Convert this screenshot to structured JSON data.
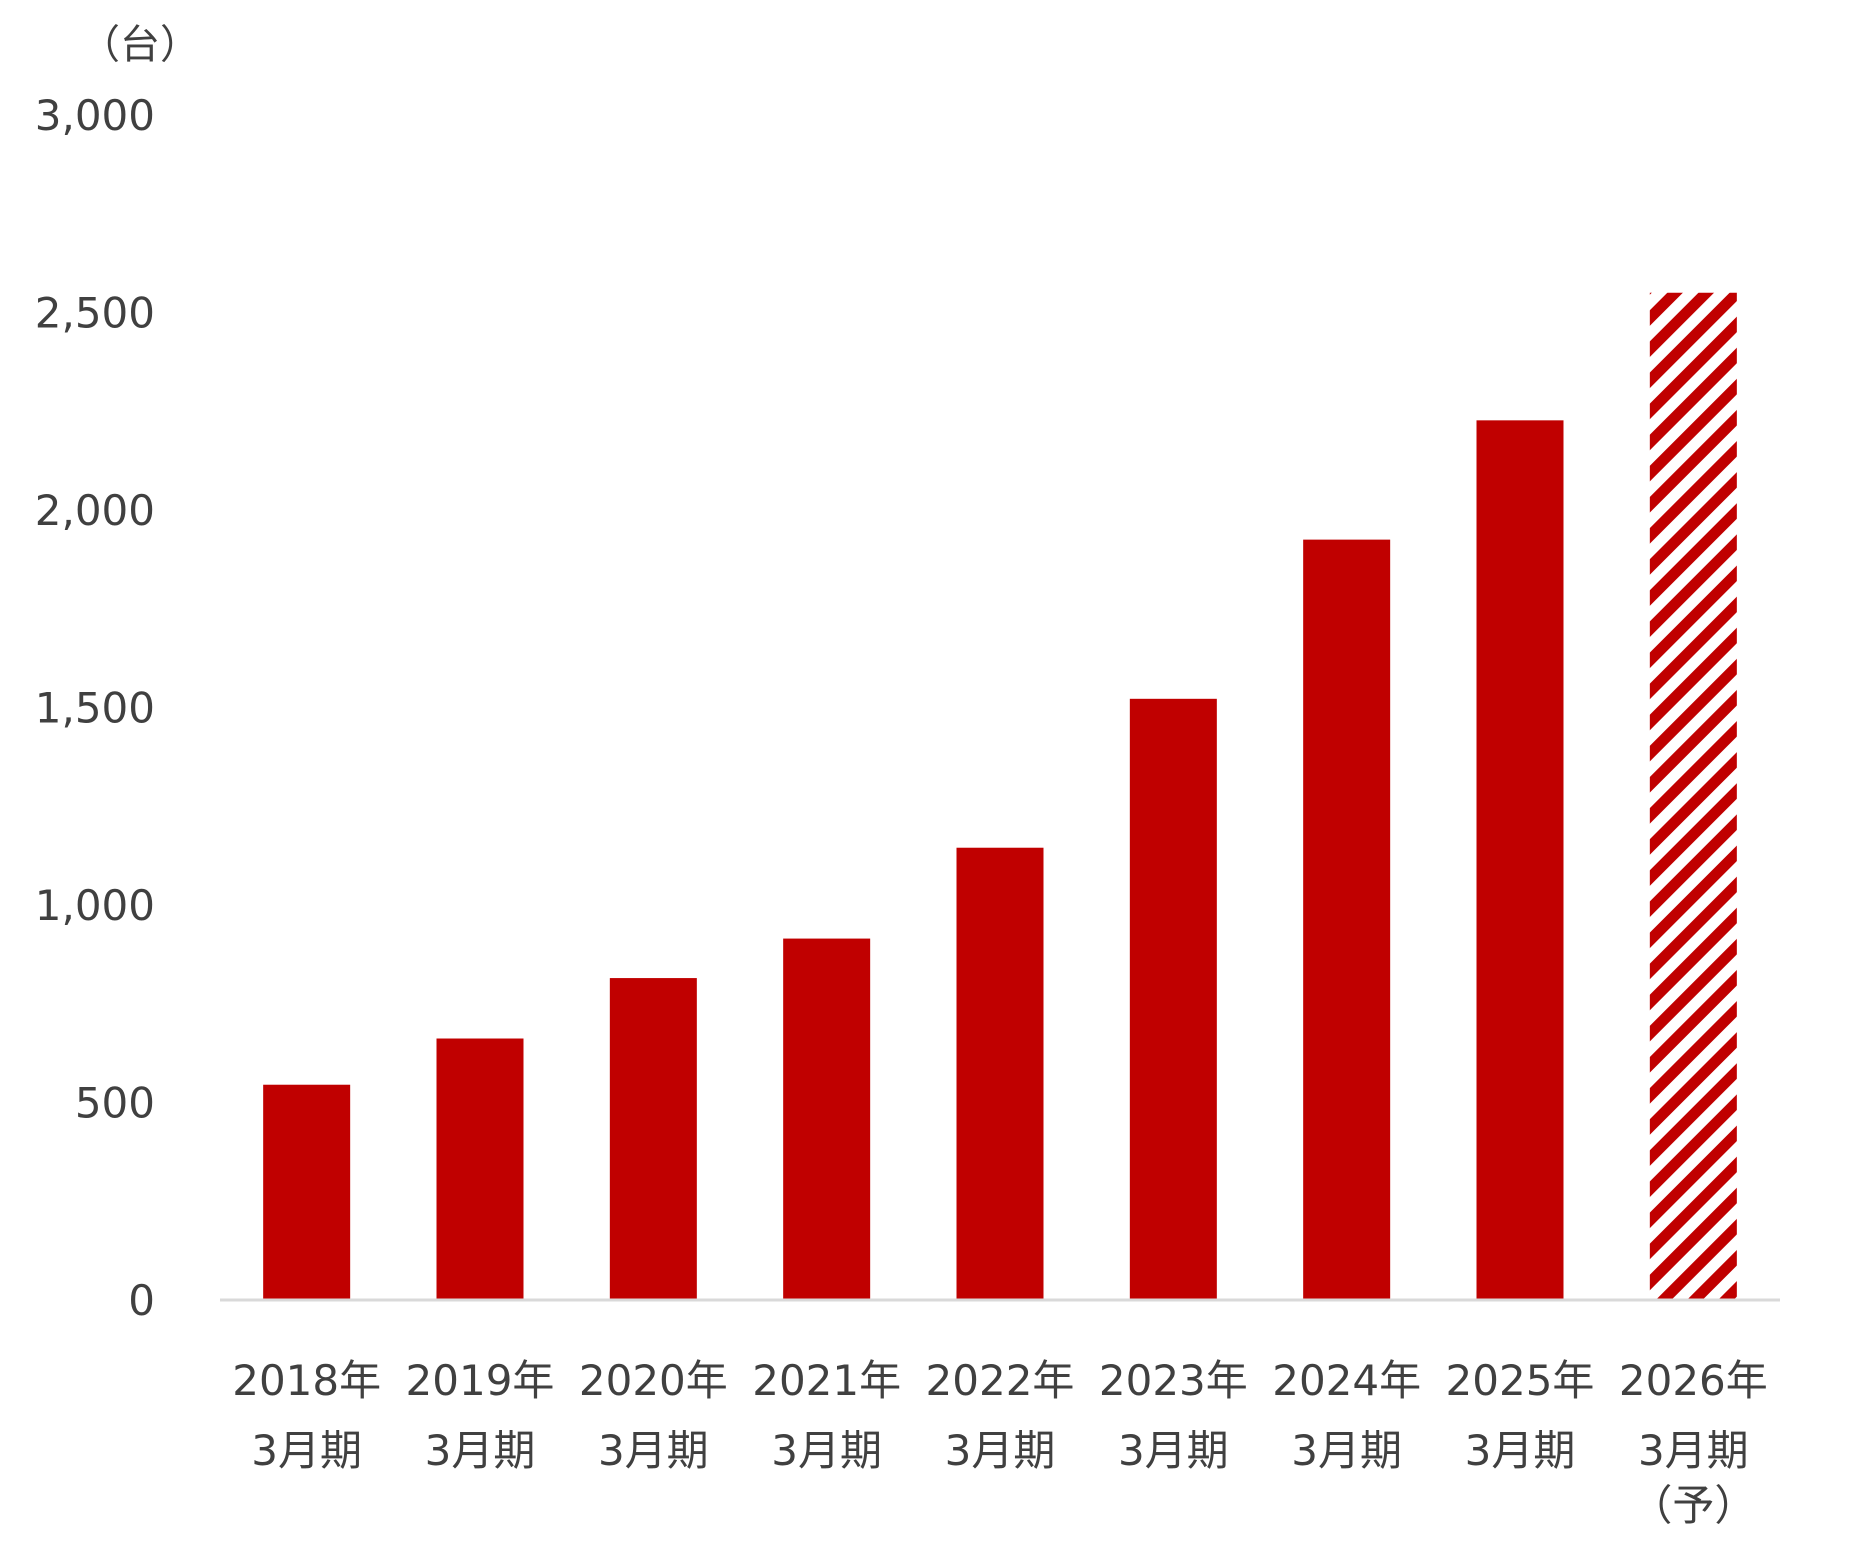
{
  "chart_data": {
    "type": "bar",
    "unit_label": "（台）",
    "y_ticks": [
      "0",
      "500",
      "1,000",
      "1,500",
      "2,000",
      "2,500",
      "3,000"
    ],
    "y_tick_values": [
      0,
      500,
      1000,
      1500,
      2000,
      2500,
      3000
    ],
    "ylim": [
      0,
      3000
    ],
    "grid": false,
    "legend": "none",
    "categories": [
      {
        "line1": "2018年",
        "line2": "3月期",
        "line3": ""
      },
      {
        "line1": "2019年",
        "line2": "3月期",
        "line3": ""
      },
      {
        "line1": "2020年",
        "line2": "3月期",
        "line3": ""
      },
      {
        "line1": "2021年",
        "line2": "3月期",
        "line3": ""
      },
      {
        "line1": "2022年",
        "line2": "3月期",
        "line3": ""
      },
      {
        "line1": "2023年",
        "line2": "3月期",
        "line3": ""
      },
      {
        "line1": "2024年",
        "line2": "3月期",
        "line3": ""
      },
      {
        "line1": "2025年",
        "line2": "3月期",
        "line3": ""
      },
      {
        "line1": "2026年",
        "line2": "3月期",
        "line3": "（予）"
      }
    ],
    "values": [
      545,
      662,
      815,
      915,
      1145,
      1522,
      1925,
      2227,
      2550
    ],
    "forecast": [
      false,
      false,
      false,
      false,
      false,
      false,
      false,
      false,
      true
    ],
    "colors": {
      "bar": "#C00000",
      "axis": "#D9D9D9",
      "text": "#404040"
    }
  }
}
